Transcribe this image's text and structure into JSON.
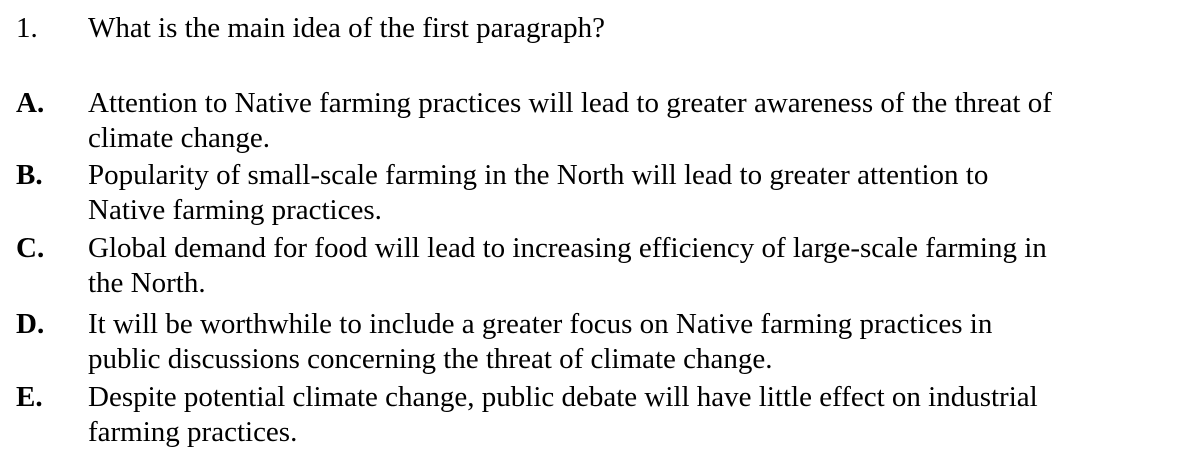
{
  "question": {
    "number": "1.",
    "text": "What is the main idea of the first paragraph?"
  },
  "options": [
    {
      "letter": "A.",
      "lines": [
        "Attention to Native farming practices will lead to greater awareness of the threat of",
        "climate change."
      ]
    },
    {
      "letter": "B.",
      "lines": [
        "Popularity of small-scale farming in the North will lead to greater attention to",
        "Native farming practices."
      ]
    },
    {
      "letter": "C.",
      "lines": [
        "Global demand for food will lead to increasing efficiency of large-scale farming in",
        "the North."
      ]
    },
    {
      "letter": "D.",
      "lines": [
        "It will be worthwhile to include a greater focus on Native farming practices in",
        "public discussions concerning the threat of climate change."
      ]
    },
    {
      "letter": "E.",
      "lines": [
        "Despite potential climate change, public debate will have little effect on industrial",
        "farming practices."
      ]
    }
  ]
}
